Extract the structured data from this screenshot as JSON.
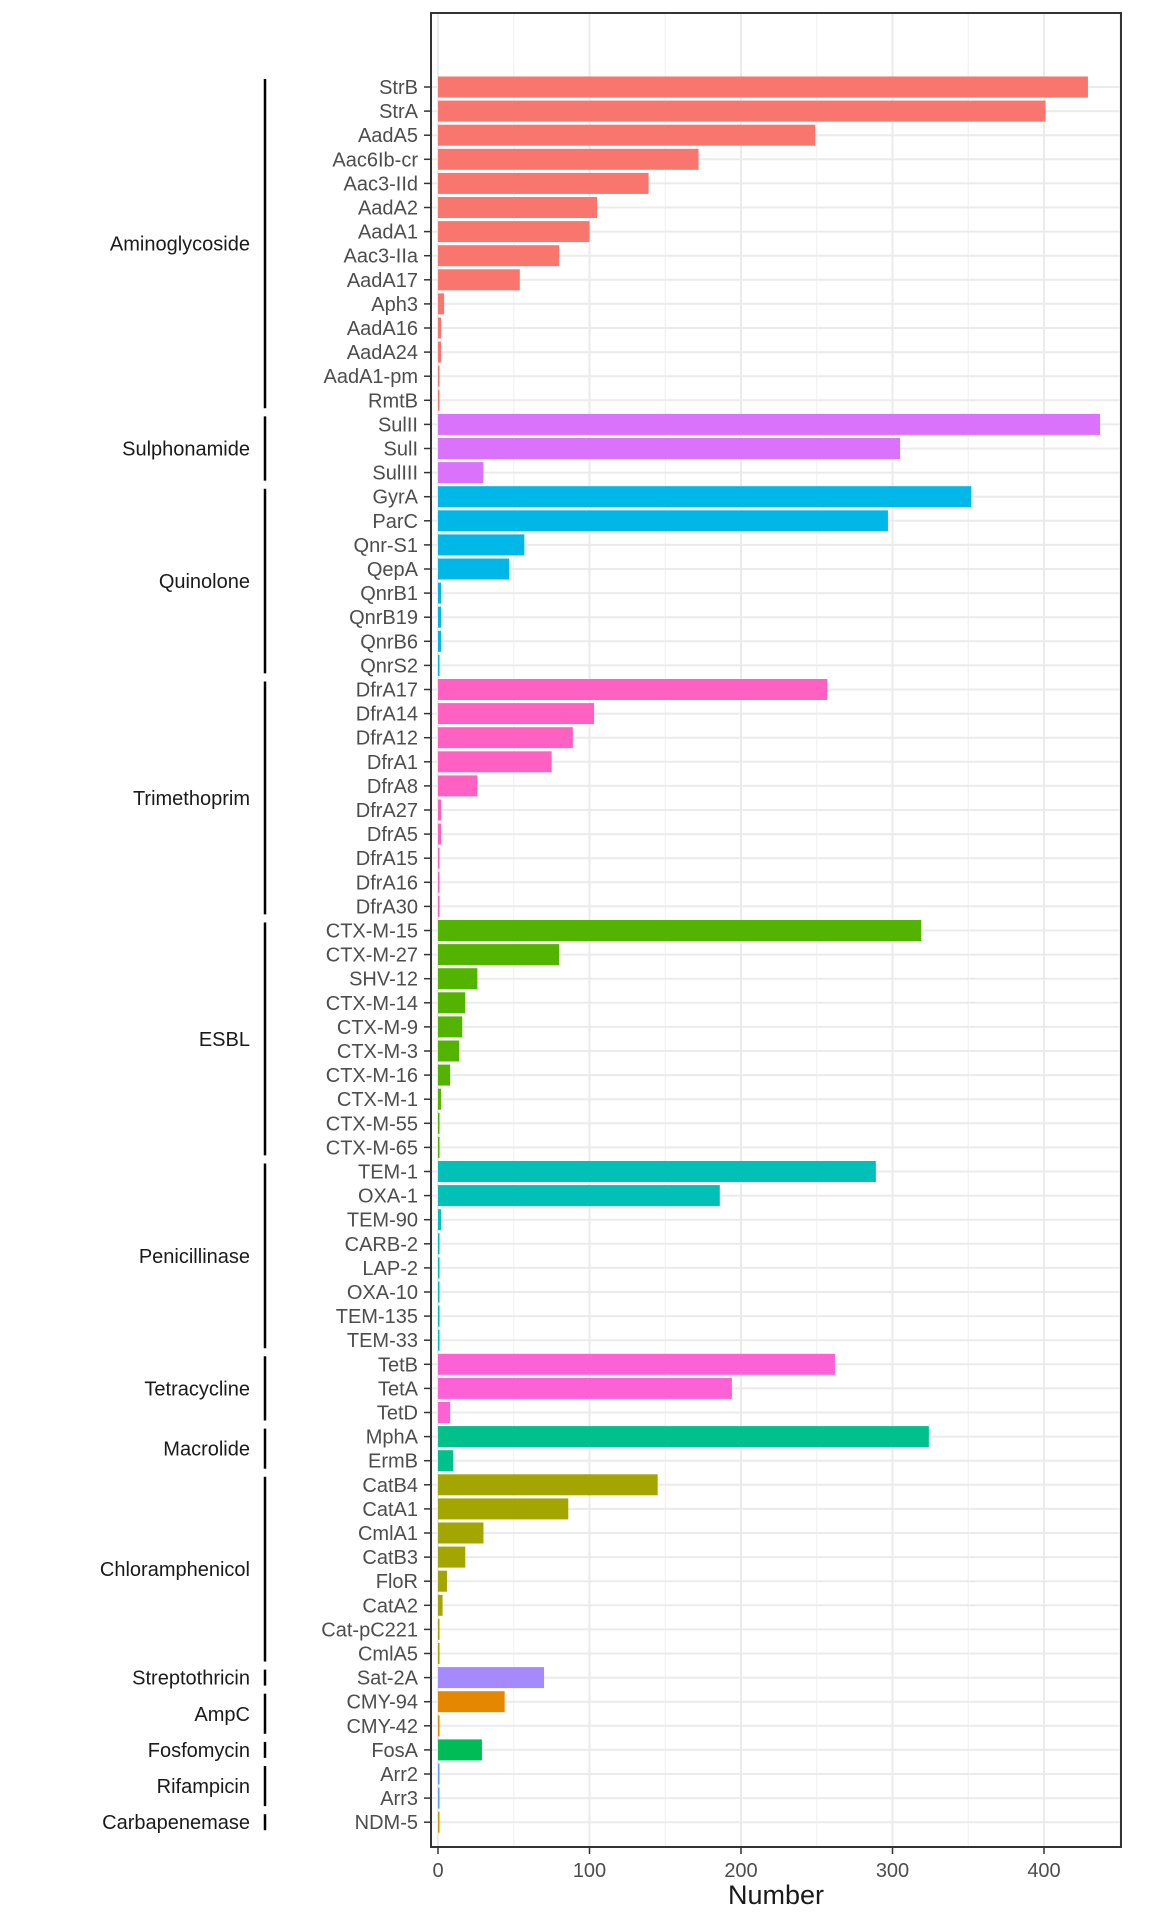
{
  "chart_data": {
    "type": "bar",
    "orientation": "horizontal",
    "title": "",
    "xlabel": "Number",
    "ylabel": "",
    "xlim": [
      -5,
      450
    ],
    "xticks": [
      0,
      100,
      200,
      300,
      400
    ],
    "grid": true,
    "legend": "none",
    "groups": [
      {
        "name": "Aminoglycoside",
        "color": "#F8766D",
        "bars": [
          {
            "label": "StrB",
            "value": 429
          },
          {
            "label": "StrA",
            "value": 401
          },
          {
            "label": "AadA5",
            "value": 249
          },
          {
            "label": "Aac6Ib-cr",
            "value": 172
          },
          {
            "label": "Aac3-IId",
            "value": 139
          },
          {
            "label": "AadA2",
            "value": 105
          },
          {
            "label": "AadA1",
            "value": 100
          },
          {
            "label": "Aac3-IIa",
            "value": 80
          },
          {
            "label": "AadA17",
            "value": 54
          },
          {
            "label": "Aph3",
            "value": 4
          },
          {
            "label": "AadA16",
            "value": 2
          },
          {
            "label": "AadA24",
            "value": 2
          },
          {
            "label": "AadA1-pm",
            "value": 1
          },
          {
            "label": "RmtB",
            "value": 1
          }
        ]
      },
      {
        "name": "Sulphonamide",
        "color": "#DB72FB",
        "bars": [
          {
            "label": "SulII",
            "value": 437
          },
          {
            "label": "SulI",
            "value": 305
          },
          {
            "label": "SulIII",
            "value": 30
          }
        ]
      },
      {
        "name": "Quinolone",
        "color": "#00B8E7",
        "bars": [
          {
            "label": "GyrA",
            "value": 352
          },
          {
            "label": "ParC",
            "value": 297
          },
          {
            "label": "Qnr-S1",
            "value": 57
          },
          {
            "label": "QepA",
            "value": 47
          },
          {
            "label": "QnrB1",
            "value": 2
          },
          {
            "label": "QnrB19",
            "value": 2
          },
          {
            "label": "QnrB6",
            "value": 2
          },
          {
            "label": "QnrS2",
            "value": 1
          }
        ]
      },
      {
        "name": "Trimethoprim",
        "color": "#FF61C3",
        "bars": [
          {
            "label": "DfrA17",
            "value": 257
          },
          {
            "label": "DfrA14",
            "value": 103
          },
          {
            "label": "DfrA12",
            "value": 89
          },
          {
            "label": "DfrA1",
            "value": 75
          },
          {
            "label": "DfrA8",
            "value": 26
          },
          {
            "label": "DfrA27",
            "value": 2
          },
          {
            "label": "DfrA5",
            "value": 2
          },
          {
            "label": "DfrA15",
            "value": 1
          },
          {
            "label": "DfrA16",
            "value": 1
          },
          {
            "label": "DfrA30",
            "value": 1
          }
        ]
      },
      {
        "name": "ESBL",
        "color": "#53B400",
        "bars": [
          {
            "label": "CTX-M-15",
            "value": 319
          },
          {
            "label": "CTX-M-27",
            "value": 80
          },
          {
            "label": "SHV-12",
            "value": 26
          },
          {
            "label": "CTX-M-14",
            "value": 18
          },
          {
            "label": "CTX-M-9",
            "value": 16
          },
          {
            "label": "CTX-M-3",
            "value": 14
          },
          {
            "label": "CTX-M-16",
            "value": 8
          },
          {
            "label": "CTX-M-1",
            "value": 2
          },
          {
            "label": "CTX-M-55",
            "value": 1
          },
          {
            "label": "CTX-M-65",
            "value": 1
          }
        ]
      },
      {
        "name": "Penicillinase",
        "color": "#00C0B8",
        "bars": [
          {
            "label": "TEM-1",
            "value": 289
          },
          {
            "label": "OXA-1",
            "value": 186
          },
          {
            "label": "TEM-90",
            "value": 2
          },
          {
            "label": "CARB-2",
            "value": 1
          },
          {
            "label": "LAP-2",
            "value": 1
          },
          {
            "label": "OXA-10",
            "value": 1
          },
          {
            "label": "TEM-135",
            "value": 1
          },
          {
            "label": "TEM-33",
            "value": 1
          }
        ]
      },
      {
        "name": "Tetracycline",
        "color": "#FC61D5",
        "bars": [
          {
            "label": "TetB",
            "value": 262
          },
          {
            "label": "TetA",
            "value": 194
          },
          {
            "label": "TetD",
            "value": 8
          }
        ]
      },
      {
        "name": "Macrolide",
        "color": "#00C08B",
        "bars": [
          {
            "label": "MphA",
            "value": 324
          },
          {
            "label": "ErmB",
            "value": 10
          }
        ]
      },
      {
        "name": "Chloramphenicol",
        "color": "#A3A500",
        "bars": [
          {
            "label": "CatB4",
            "value": 145
          },
          {
            "label": "CatA1",
            "value": 86
          },
          {
            "label": "CmlA1",
            "value": 30
          },
          {
            "label": "CatB3",
            "value": 18
          },
          {
            "label": "FloR",
            "value": 6
          },
          {
            "label": "CatA2",
            "value": 3
          },
          {
            "label": "Cat-pC221",
            "value": 1
          },
          {
            "label": "CmlA5",
            "value": 1
          }
        ]
      },
      {
        "name": "Streptothricin",
        "color": "#A58AFF",
        "bars": [
          {
            "label": "Sat-2A",
            "value": 70
          }
        ]
      },
      {
        "name": "AmpC",
        "color": "#E58700",
        "bars": [
          {
            "label": "CMY-94",
            "value": 44
          },
          {
            "label": "CMY-42",
            "value": 1
          }
        ]
      },
      {
        "name": "Fosfomycin",
        "color": "#00BC56",
        "bars": [
          {
            "label": "FosA",
            "value": 29
          }
        ]
      },
      {
        "name": "Rifampicin",
        "color": "#619CFF",
        "bars": [
          {
            "label": "Arr2",
            "value": 1
          },
          {
            "label": "Arr3",
            "value": 1
          }
        ]
      },
      {
        "name": "Carbapenemase",
        "color": "#C99800",
        "bars": [
          {
            "label": "NDM-5",
            "value": 1
          }
        ]
      }
    ]
  }
}
